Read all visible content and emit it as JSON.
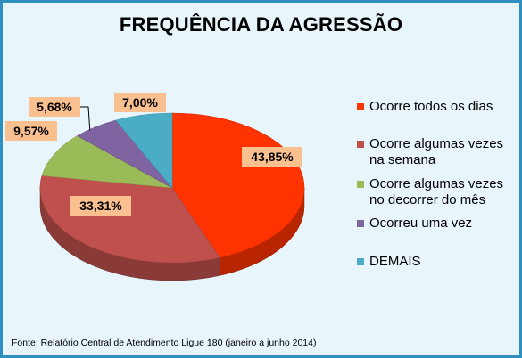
{
  "chart_data": {
    "type": "pie",
    "title": "FREQUÊNCIA DA AGRESSÃO",
    "categories": [
      "Ocorre todos os dias",
      "Ocorre algumas vezes na semana",
      "Ocorre algumas vezes no decorrer do mês",
      "Ocorreu uma vez",
      "DEMAIS"
    ],
    "values": [
      43.85,
      33.31,
      9.57,
      5.68,
      7.0
    ],
    "data_labels": [
      "43,85%",
      "33,31%",
      "9,57%",
      "5,68%",
      "7,00%"
    ],
    "colors": [
      "#ff3300",
      "#c0504d",
      "#9bbb59",
      "#8064a2",
      "#4bacc6"
    ],
    "legend_placement": "right",
    "style": "3d"
  },
  "legend": {
    "items": [
      {
        "line1": "Ocorre todos os dias",
        "line2": ""
      },
      {
        "line1": "Ocorre algumas vezes",
        "line2": "na semana"
      },
      {
        "line1": "Ocorre algumas vezes",
        "line2": "no decorrer do mês"
      },
      {
        "line1": "Ocorreu uma vez",
        "line2": ""
      },
      {
        "line1": "DEMAIS",
        "line2": ""
      }
    ]
  },
  "source": "Fonte: Relatório Central de Atendimento Ligue 180 (janeiro a junho 2014)",
  "colors": {
    "frame_border": "#2f8fbf",
    "background": "#e8f6fc",
    "label_box": "#fac090"
  }
}
